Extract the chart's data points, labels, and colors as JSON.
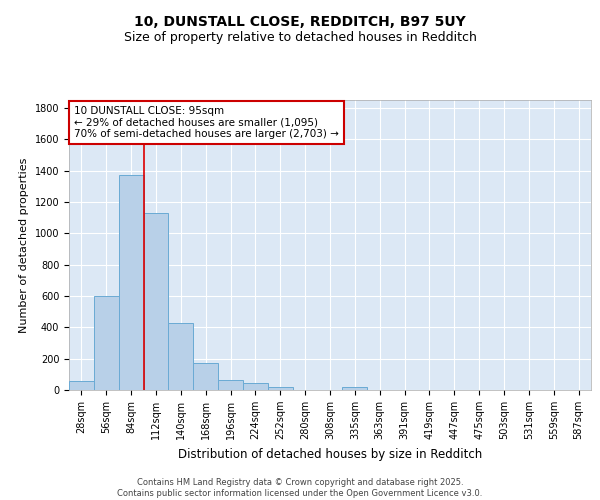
{
  "title1": "10, DUNSTALL CLOSE, REDDITCH, B97 5UY",
  "title2": "Size of property relative to detached houses in Redditch",
  "xlabel": "Distribution of detached houses by size in Redditch",
  "ylabel": "Number of detached properties",
  "categories": [
    "28sqm",
    "56sqm",
    "84sqm",
    "112sqm",
    "140sqm",
    "168sqm",
    "196sqm",
    "224sqm",
    "252sqm",
    "280sqm",
    "308sqm",
    "335sqm",
    "363sqm",
    "391sqm",
    "419sqm",
    "447sqm",
    "475sqm",
    "503sqm",
    "531sqm",
    "559sqm",
    "587sqm"
  ],
  "values": [
    55,
    600,
    1370,
    1130,
    430,
    175,
    65,
    45,
    20,
    0,
    0,
    20,
    0,
    0,
    0,
    0,
    0,
    0,
    0,
    0,
    0
  ],
  "bar_color": "#b8d0e8",
  "bar_edge_color": "#6aaad4",
  "red_line_x": 2.5,
  "annotation_text": "10 DUNSTALL CLOSE: 95sqm\n← 29% of detached houses are smaller (1,095)\n70% of semi-detached houses are larger (2,703) →",
  "annotation_box_color": "#ffffff",
  "annotation_box_edge_color": "#cc0000",
  "fig_background_color": "#ffffff",
  "plot_background": "#dce8f5",
  "grid_color": "#ffffff",
  "ylim": [
    0,
    1850
  ],
  "yticks": [
    0,
    200,
    400,
    600,
    800,
    1000,
    1200,
    1400,
    1600,
    1800
  ],
  "footer_text": "Contains HM Land Registry data © Crown copyright and database right 2025.\nContains public sector information licensed under the Open Government Licence v3.0.",
  "title_fontsize": 10,
  "subtitle_fontsize": 9,
  "tick_fontsize": 7,
  "ylabel_fontsize": 8,
  "xlabel_fontsize": 8.5,
  "annot_fontsize": 7.5,
  "footer_fontsize": 6
}
